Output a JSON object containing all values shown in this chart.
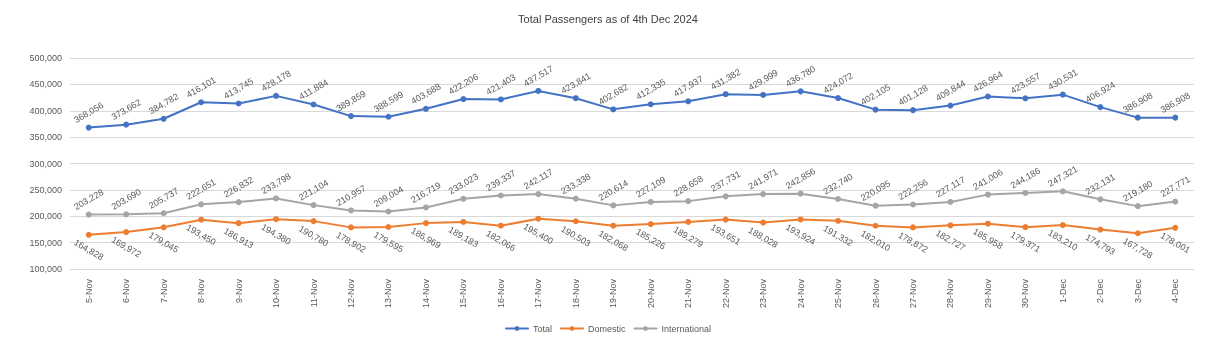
{
  "chart_data": {
    "type": "line",
    "title": "Total Passengers as of 4th Dec 2024",
    "categories": [
      "5-Nov",
      "6-Nov",
      "7-Nov",
      "8-Nov",
      "9-Nov",
      "10-Nov",
      "11-Nov",
      "12-Nov",
      "13-Nov",
      "14-Nov",
      "15-Nov",
      "16-Nov",
      "17-Nov",
      "18-Nov",
      "19-Nov",
      "20-Nov",
      "21-Nov",
      "22-Nov",
      "23-Nov",
      "24-Nov",
      "25-Nov",
      "26-Nov",
      "27-Nov",
      "28-Nov",
      "29-Nov",
      "30-Nov",
      "1-Dec",
      "2-Dec",
      "3-Dec",
      "4-Dec"
    ],
    "series": [
      {
        "name": "Total",
        "color": "#4472c4",
        "values": [
          368056,
          373662,
          384782,
          416101,
          413745,
          428178,
          411884,
          389859,
          388599,
          403688,
          422206,
          421403,
          437517,
          423841,
          402682,
          412335,
          417937,
          431382,
          429999,
          436780,
          424072,
          402105,
          401128,
          409844,
          426964,
          423557,
          430531,
          406924,
          386908,
          386908
        ],
        "value_labels": [
          "368,056",
          "373,662",
          "384,782",
          "416,101",
          "413,745",
          "428,178",
          "411,884",
          "389,859",
          "388,599",
          "403,688",
          "422,206",
          "421,403",
          "437,517",
          "423,841",
          "402,682",
          "412,335",
          "417,937",
          "431,382",
          "429,999",
          "436,780",
          "424,072",
          "402,105",
          "401,128",
          "409,844",
          "426,964",
          "423,557",
          "430,531",
          "406,924",
          "386,908",
          "386,908"
        ]
      },
      {
        "name": "Domestic",
        "color": "#ed7d31",
        "values": [
          164828,
          169972,
          179045,
          193450,
          186913,
          194380,
          190780,
          178902,
          179595,
          186969,
          189183,
          182066,
          195400,
          190503,
          182068,
          185226,
          189279,
          193651,
          188028,
          193924,
          191332,
          182010,
          178872,
          182727,
          185958,
          179371,
          183210,
          174793,
          167728,
          178001
        ],
        "value_labels": [
          "164,828",
          "169,972",
          "179,045",
          "193,450",
          "186,913",
          "194,380",
          "190,780",
          "178,902",
          "179,595",
          "186,969",
          "189,183",
          "182,066",
          "195,400",
          "190,503",
          "182,068",
          "185,226",
          "189,279",
          "193,651",
          "188,028",
          "193,924",
          "191,332",
          "182,010",
          "178,872",
          "182,727",
          "185,958",
          "179,371",
          "183,210",
          "174,793",
          "167,728",
          "178,001"
        ]
      },
      {
        "name": "International",
        "color": "#a5a5a5",
        "values": [
          203228,
          203690,
          205737,
          222651,
          226832,
          233798,
          221104,
          210957,
          209004,
          216719,
          233023,
          239337,
          242117,
          233338,
          220614,
          227109,
          228658,
          237731,
          241971,
          242856,
          232740,
          220095,
          222256,
          227117,
          241006,
          244186,
          247321,
          232131,
          219180,
          227771
        ],
        "value_labels": [
          "203,228",
          "203,690",
          "205,737",
          "222,651",
          "226,832",
          "233,798",
          "221,104",
          "210,957",
          "209,004",
          "216,719",
          "233,023",
          "239,337",
          "242,117",
          "233,338",
          "220,614",
          "227,109",
          "228,658",
          "237,731",
          "241,971",
          "242,856",
          "232,740",
          "220,095",
          "222,256",
          "227,117",
          "241,006",
          "244,186",
          "247,321",
          "232,131",
          "219,180",
          "227,771"
        ]
      }
    ],
    "ylim": [
      100000,
      500000
    ],
    "yticks": [
      {
        "value": 100000,
        "label": "100,000"
      },
      {
        "value": 150000,
        "label": "150,000"
      },
      {
        "value": 200000,
        "label": "200,000"
      },
      {
        "value": 250000,
        "label": "250,000"
      },
      {
        "value": 300000,
        "label": "300,000"
      },
      {
        "value": 350000,
        "label": "350,000"
      },
      {
        "value": 400000,
        "label": "400,000"
      },
      {
        "value": 450000,
        "label": "450,000"
      },
      {
        "value": 500000,
        "label": "500,000"
      }
    ],
    "grid": "y",
    "legend": "bottom",
    "marker": "circle",
    "line_style": "solid"
  }
}
